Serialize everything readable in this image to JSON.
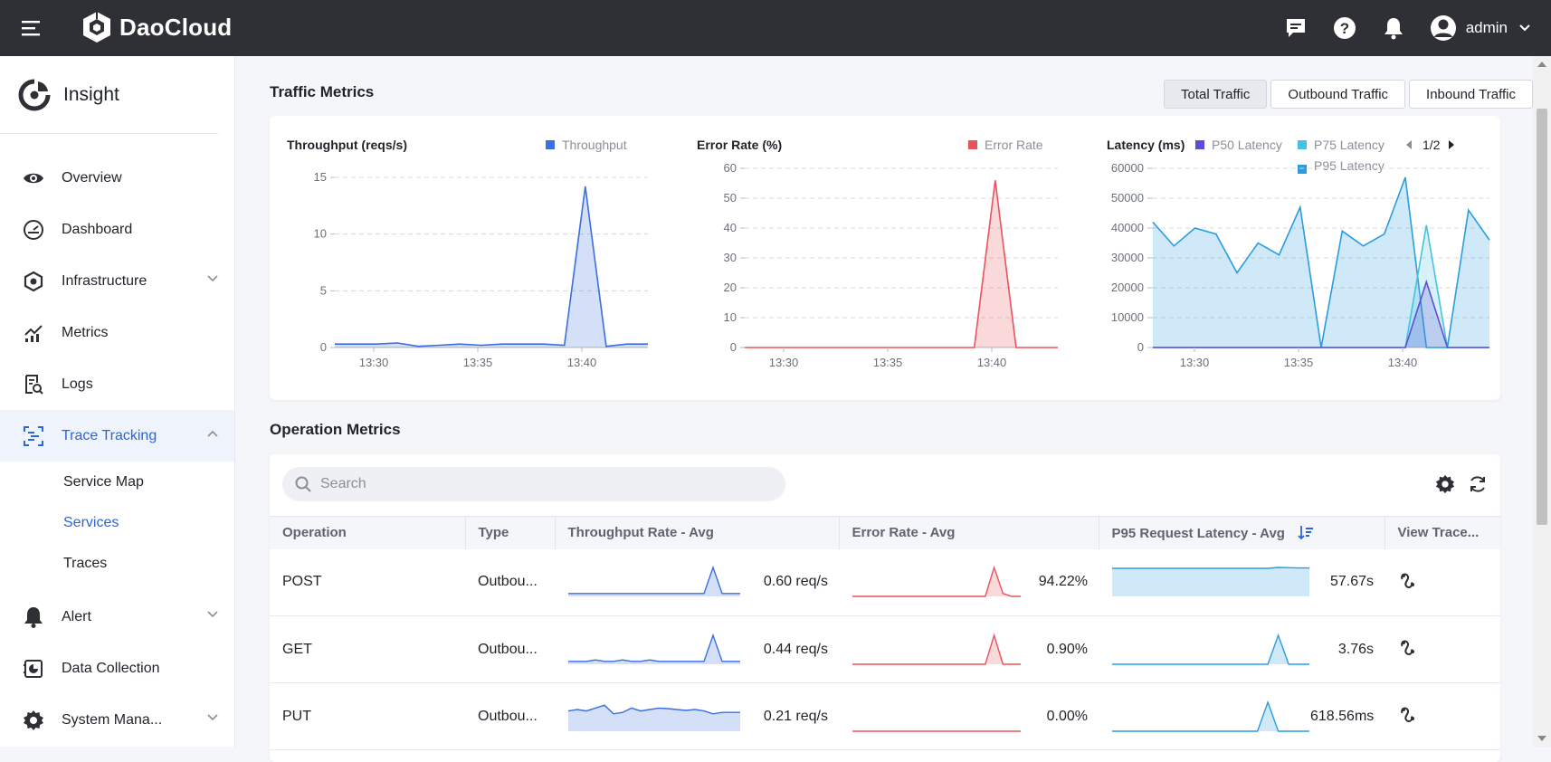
{
  "header": {
    "brand": "DaoCloud",
    "user": "admin"
  },
  "sidebar": {
    "module_title": "Insight",
    "items": [
      {
        "label": "Overview"
      },
      {
        "label": "Dashboard"
      },
      {
        "label": "Infrastructure"
      },
      {
        "label": "Metrics"
      },
      {
        "label": "Logs"
      },
      {
        "label": "Trace Tracking"
      },
      {
        "label": "Alert"
      },
      {
        "label": "Data Collection"
      },
      {
        "label": "System Mana..."
      }
    ],
    "sub_items": [
      {
        "label": "Service Map"
      },
      {
        "label": "Services"
      },
      {
        "label": "Traces"
      }
    ]
  },
  "traffic": {
    "title": "Traffic Metrics",
    "tabs": [
      "Total Traffic",
      "Outbound Traffic",
      "Inbound Traffic"
    ],
    "active_tab": "Total Traffic",
    "legend_page": "1/2"
  },
  "operation": {
    "title": "Operation Metrics",
    "search_placeholder": "Search",
    "columns": [
      "Operation",
      "Type",
      "Throughput Rate - Avg",
      "Error Rate - Avg",
      "P95 Request Latency - Avg",
      "View Trace..."
    ],
    "rows": [
      {
        "operation": "POST",
        "type": "Outbou...",
        "throughput": "0.60 req/s",
        "error_rate": "94.22%",
        "latency": "57.67s"
      },
      {
        "operation": "GET",
        "type": "Outbou...",
        "throughput": "0.44 req/s",
        "error_rate": "0.90%",
        "latency": "3.76s"
      },
      {
        "operation": "PUT",
        "type": "Outbou...",
        "throughput": "0.21 req/s",
        "error_rate": "0.00%",
        "latency": "618.56ms"
      }
    ]
  },
  "colors": {
    "accent": "#2b66d8",
    "throughput": "#3b6fe0",
    "error": "#e8545b",
    "p50": "#5b4fd6",
    "p75": "#47c2e0",
    "p95": "#2a9de0"
  },
  "chart_data": [
    {
      "type": "area",
      "title": "Throughput (reqs/s)",
      "x_ticks": [
        "13:30",
        "13:35",
        "13:40"
      ],
      "ylim": [
        0,
        15
      ],
      "y_ticks": [
        0,
        5,
        10,
        15
      ],
      "series": [
        {
          "name": "Throughput",
          "values": [
            0.3,
            0.3,
            0.3,
            0.4,
            0.1,
            0.2,
            0.3,
            0.2,
            0.3,
            0.3,
            0.3,
            0.2,
            14.2,
            0.1,
            0.3,
            0.3
          ]
        }
      ]
    },
    {
      "type": "area",
      "title": "Error Rate (%)",
      "x_ticks": [
        "13:30",
        "13:35",
        "13:40"
      ],
      "ylim": [
        0,
        60
      ],
      "y_ticks": [
        0,
        10,
        20,
        30,
        40,
        50,
        60
      ],
      "series": [
        {
          "name": "Error Rate",
          "values": [
            0,
            0,
            0,
            0,
            0,
            0,
            0,
            0,
            0,
            0,
            0,
            0,
            56,
            0,
            0,
            0
          ]
        }
      ]
    },
    {
      "type": "area",
      "title": "Latency (ms)",
      "x_ticks": [
        "13:30",
        "13:35",
        "13:40"
      ],
      "ylim": [
        0,
        60000
      ],
      "y_ticks": [
        0,
        10000,
        20000,
        30000,
        40000,
        50000,
        60000
      ],
      "series": [
        {
          "name": "P50 Latency",
          "values": [
            0,
            0,
            0,
            0,
            0,
            0,
            0,
            0,
            0,
            0,
            0,
            0,
            0,
            22000,
            0,
            0,
            0
          ]
        },
        {
          "name": "P75 Latency",
          "values": [
            0,
            0,
            0,
            0,
            0,
            0,
            0,
            0,
            0,
            0,
            0,
            0,
            0,
            41000,
            0,
            0,
            0
          ]
        },
        {
          "name": "P95 Latency",
          "values": [
            42000,
            34000,
            40000,
            38000,
            25000,
            35000,
            31000,
            47000,
            0,
            39000,
            34000,
            38000,
            57000,
            0,
            0,
            46000,
            36000
          ]
        }
      ]
    }
  ],
  "sparklines": {
    "throughput": [
      [
        0.1,
        0.1,
        0.1,
        0.1,
        0.1,
        0.1,
        0.1,
        0.1,
        0.1,
        0.1,
        0.1,
        0.1,
        0.1,
        0.1,
        0.1,
        0.1,
        1.0,
        0.1,
        0.1,
        0.1
      ],
      [
        0.1,
        0.1,
        0.1,
        0.15,
        0.1,
        0.1,
        0.15,
        0.1,
        0.1,
        0.15,
        0.1,
        0.1,
        0.1,
        0.1,
        0.1,
        0.1,
        1.0,
        0.1,
        0.1,
        0.1
      ],
      [
        0.7,
        0.75,
        0.7,
        0.8,
        0.9,
        0.6,
        0.65,
        0.8,
        0.7,
        0.75,
        0.8,
        0.78,
        0.75,
        0.72,
        0.75,
        0.7,
        0.6,
        0.65,
        0.65,
        0.65
      ]
    ],
    "error": [
      [
        0,
        0,
        0,
        0,
        0,
        0,
        0,
        0,
        0,
        0,
        0,
        0,
        0,
        0,
        0,
        0,
        1.0,
        0.1,
        0,
        0
      ],
      [
        0,
        0,
        0,
        0,
        0,
        0,
        0,
        0,
        0,
        0,
        0,
        0,
        0,
        0,
        0,
        0,
        1.0,
        0,
        0,
        0
      ],
      [
        0,
        0,
        0,
        0,
        0,
        0,
        0,
        0,
        0,
        0,
        0,
        0,
        0,
        0,
        0,
        0,
        0,
        0,
        0,
        0
      ]
    ],
    "latency": [
      [
        0.97,
        0.97,
        0.97,
        0.97,
        0.97,
        0.97,
        0.97,
        0.97,
        0.97,
        0.97,
        0.97,
        0.97,
        0.97,
        0.97,
        0.97,
        0.97,
        1.0,
        0.99,
        0.98,
        0.98
      ],
      [
        0,
        0,
        0,
        0,
        0,
        0,
        0,
        0,
        0,
        0,
        0,
        0,
        0,
        0,
        0,
        0,
        1.0,
        0,
        0,
        0
      ],
      [
        0,
        0,
        0,
        0,
        0,
        0,
        0,
        0,
        0,
        0,
        0,
        0,
        0,
        0,
        0,
        1.0,
        0,
        0,
        0,
        0
      ]
    ]
  }
}
